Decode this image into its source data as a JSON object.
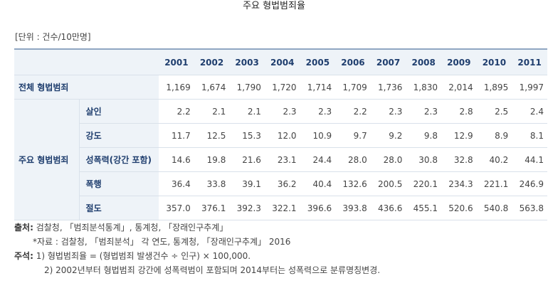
{
  "title": "주요 형법범죄율",
  "unit": "[단위 : 건수/10만명]",
  "table": {
    "years": [
      "2001",
      "2002",
      "2003",
      "2004",
      "2005",
      "2006",
      "2007",
      "2008",
      "2009",
      "2010",
      "2011"
    ],
    "total": {
      "label": "전체 형법범죄",
      "values": [
        "1,169",
        "1,674",
        "1,790",
        "1,720",
        "1,714",
        "1,709",
        "1,736",
        "1,830",
        "2,014",
        "1,895",
        "1,997"
      ]
    },
    "group_label": "주요 형법범죄",
    "rows": [
      {
        "label": "살인",
        "values": [
          "2.2",
          "2.1",
          "2.1",
          "2.3",
          "2.3",
          "2.2",
          "2.3",
          "2.3",
          "2.8",
          "2.5",
          "2.4"
        ]
      },
      {
        "label": "강도",
        "values": [
          "11.7",
          "12.5",
          "15.3",
          "12.0",
          "10.9",
          "9.7",
          "9.2",
          "9.8",
          "12.9",
          "8.9",
          "8.1"
        ]
      },
      {
        "label": "성폭력(강간 포함)",
        "values": [
          "14.6",
          "19.8",
          "21.6",
          "23.1",
          "24.4",
          "28.0",
          "28.0",
          "30.8",
          "32.8",
          "40.2",
          "44.1"
        ]
      },
      {
        "label": "폭행",
        "values": [
          "36.4",
          "33.8",
          "39.1",
          "36.2",
          "40.4",
          "132.6",
          "200.5",
          "220.1",
          "234.3",
          "221.1",
          "246.9"
        ]
      },
      {
        "label": "절도",
        "values": [
          "357.0",
          "376.1",
          "392.3",
          "322.1",
          "396.6",
          "393.8",
          "436.6",
          "455.1",
          "520.6",
          "540.8",
          "563.8"
        ]
      }
    ]
  },
  "notes": {
    "source_label": "출처:",
    "source_text": " 검찰청, 「범죄분석통계」, 통계청, 「장래인구추계」",
    "data_text": "*자료 : 검찰청, 「범죄분석」 각 연도, 통계청, 「장래인구추계」 2016",
    "remark_label": "주석:",
    "remark_1": " 1) 형법범죄율 = (형법범죄 발생건수 ÷ 인구) × 100,000.",
    "remark_2": "2) 2002년부터 형법범죄 강간에 성폭력범이 포함되며 2014부터는 성폭력으로 분류명칭변경."
  }
}
